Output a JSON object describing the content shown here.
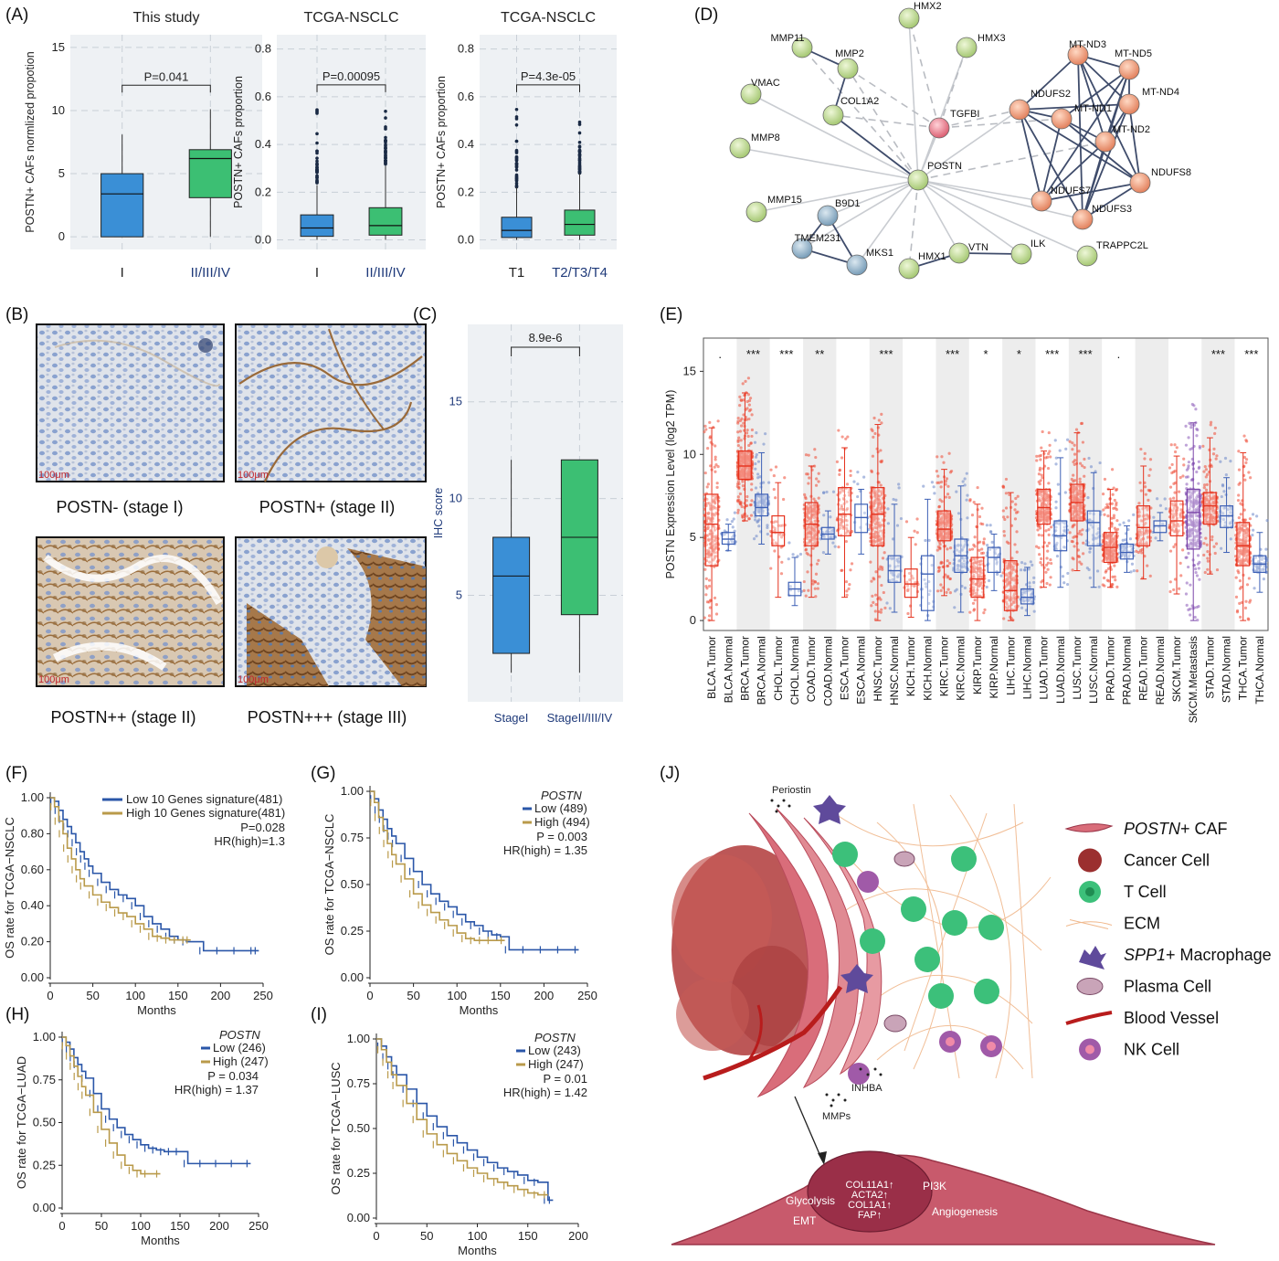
{
  "panels": {
    "A": "(A)",
    "B": "(B)",
    "C": "(C)",
    "D": "(D)",
    "E": "(E)",
    "F": "(F)",
    "G": "(G)",
    "H": "(H)",
    "I": "(I)",
    "J": "(J)"
  },
  "panel_a": {
    "plots": [
      {
        "title": "This study",
        "ylabel": "POSTN+ CAFs normlized propotion",
        "yticks": [
          "0",
          "5",
          "10",
          "15"
        ],
        "ylim": [
          -1,
          16
        ],
        "categories": [
          "I",
          "II/III/IV"
        ],
        "pvalue": "P=0.041",
        "boxes": [
          {
            "q1": 0,
            "median": 3.4,
            "q3": 5,
            "wlo": 0,
            "whi": 8.1,
            "color": "#3a8fd6"
          },
          {
            "q1": 3.1,
            "median": 6.2,
            "q3": 6.9,
            "wlo": 0,
            "whi": 10.1,
            "color": "#3cbf73"
          }
        ]
      },
      {
        "title": "TCGA-NSCLC",
        "ylabel": "POSTN+ CAFs proportion",
        "yticks": [
          "0.0",
          "0.2",
          "0.4",
          "0.6",
          "0.8"
        ],
        "ylim": [
          -0.04,
          0.86
        ],
        "categories": [
          "I",
          "II/III/IV"
        ],
        "pvalue": "P=0.00095",
        "boxes": [
          {
            "q1": 0.015,
            "median": 0.05,
            "q3": 0.105,
            "wlo": 0,
            "whi": 0.23,
            "color": "#3a8fd6"
          },
          {
            "q1": 0.02,
            "median": 0.06,
            "q3": 0.135,
            "wlo": 0,
            "whi": 0.31,
            "color": "#3cbf73"
          }
        ]
      },
      {
        "title": "TCGA-NSCLC",
        "ylabel": "POSTN+ CAFs proportion",
        "yticks": [
          "0.0",
          "0.2",
          "0.4",
          "0.6",
          "0.8"
        ],
        "ylim": [
          -0.04,
          0.86
        ],
        "categories": [
          "T1",
          "T2/T3/T4"
        ],
        "pvalue": "P=4.3e-05",
        "boxes": [
          {
            "q1": 0.01,
            "median": 0.04,
            "q3": 0.095,
            "wlo": 0,
            "whi": 0.22,
            "color": "#3a8fd6"
          },
          {
            "q1": 0.02,
            "median": 0.065,
            "q3": 0.125,
            "wlo": 0,
            "whi": 0.28,
            "color": "#3cbf73"
          }
        ]
      }
    ]
  },
  "panel_b": {
    "captions": [
      "POSTN- (stage I)",
      "POSTN+ (stage II)",
      "POSTN++ (stage II)",
      "POSTN+++ (stage III)"
    ],
    "scale": [
      "100μm",
      "100μm",
      "100μm",
      "100μm"
    ]
  },
  "panel_c": {
    "ylabel": "IHC score",
    "yticks": [
      "5",
      "10",
      "15"
    ],
    "categories": [
      "StageI",
      "StageII/III/IV"
    ],
    "pvalue": "8.9e-6",
    "chart_data": {
      "type": "box",
      "categories": [
        "StageI",
        "StageII/III/IV"
      ],
      "boxes": [
        {
          "q1": 2,
          "median": 6,
          "q3": 8,
          "wlo": 1,
          "whi": 12,
          "color": "#3a8fd6"
        },
        {
          "q1": 4,
          "median": 8,
          "q3": 12,
          "wlo": 1,
          "whi": 12,
          "color": "#3cbf73"
        }
      ],
      "ylim": [
        -0.5,
        19
      ]
    }
  },
  "panel_d": {
    "nodes": [
      {
        "label": "HMX2",
        "c": "g"
      },
      {
        "label": "HMX3",
        "c": "g"
      },
      {
        "label": "MMP11",
        "c": "g"
      },
      {
        "label": "MMP2",
        "c": "g"
      },
      {
        "label": "VMAC",
        "c": "g"
      },
      {
        "label": "COL1A2",
        "c": "g"
      },
      {
        "label": "TGFBI",
        "c": "r"
      },
      {
        "label": "MMP8",
        "c": "g"
      },
      {
        "label": "POSTN",
        "c": "g"
      },
      {
        "label": "MMP15",
        "c": "g"
      },
      {
        "label": "B9D1",
        "c": "b"
      },
      {
        "label": "TMEM231",
        "c": "b"
      },
      {
        "label": "MKS1",
        "c": "b"
      },
      {
        "label": "HMX1",
        "c": "g"
      },
      {
        "label": "VTN",
        "c": "g"
      },
      {
        "label": "ILK",
        "c": "g"
      },
      {
        "label": "TRAPPC2L",
        "c": "g"
      },
      {
        "label": "MT-ND3",
        "c": "o"
      },
      {
        "label": "MT-ND5",
        "c": "o"
      },
      {
        "label": "NDUFS2",
        "c": "o"
      },
      {
        "label": "MT-ND1",
        "c": "o"
      },
      {
        "label": "MT-ND4",
        "c": "o"
      },
      {
        "label": "MT-ND2",
        "c": "o"
      },
      {
        "label": "NDUFS8",
        "c": "o"
      },
      {
        "label": "NDUFS7",
        "c": "o"
      },
      {
        "label": "NDUFS3",
        "c": "o"
      }
    ]
  },
  "panel_e": {
    "ylabel": "POSTN Expression Level (log2 TPM)",
    "yticks": [
      "0",
      "5",
      "10",
      "15"
    ],
    "chart_data": {
      "type": "box",
      "ylim": [
        -0.6,
        17
      ],
      "categories": [
        "BLCA.Tumor",
        "BLCA.Normal",
        "BRCA.Tumor",
        "BRCA.Normal",
        "CHOL.Tumor",
        "CHOL.Normal",
        "COAD.Tumor",
        "COAD.Normal",
        "ESCA.Tumor",
        "ESCA.Normal",
        "HNSC.Tumor",
        "HNSC.Normal",
        "KICH.Tumor",
        "KICH.Normal",
        "KIRC.Tumor",
        "KIRC.Normal",
        "KIRP.Tumor",
        "KIRP.Normal",
        "LIHC.Tumor",
        "LIHC.Normal",
        "LUAD.Tumor",
        "LUAD.Normal",
        "LUSC.Tumor",
        "LUSC.Normal",
        "PRAD.Tumor",
        "PRAD.Normal",
        "READ.Tumor",
        "READ.Normal",
        "SKCM.Tumor",
        "SKCM.Metastasis",
        "STAD.Tumor",
        "STAD.Normal",
        "THCA.Tumor",
        "THCA.Normal"
      ],
      "q1": [
        3.3,
        4.6,
        8.5,
        6.3,
        4.5,
        1.5,
        4.5,
        4.9,
        5.1,
        5.3,
        4.5,
        2.3,
        1.4,
        0.6,
        4.8,
        2.9,
        1.4,
        2.9,
        0.6,
        1.0,
        5.8,
        4.2,
        6.0,
        4.5,
        3.5,
        3.7,
        4.5,
        5.3,
        5.1,
        4.3,
        5.8,
        5.6,
        3.3,
        2.9
      ],
      "median": [
        5.8,
        4.9,
        9.3,
        6.8,
        5.3,
        1.9,
        5.8,
        5.2,
        6.4,
        6.2,
        6.4,
        3.0,
        2.2,
        2.8,
        5.5,
        3.9,
        2.5,
        3.8,
        1.8,
        1.4,
        6.8,
        5.1,
        7.1,
        5.9,
        4.4,
        4.1,
        5.6,
        5.7,
        6.0,
        6.5,
        6.9,
        6.3,
        4.5,
        3.4
      ],
      "q3": [
        7.6,
        5.3,
        10.2,
        7.6,
        6.3,
        2.3,
        7.1,
        5.6,
        8.0,
        7.0,
        8.0,
        3.9,
        3.1,
        3.9,
        6.6,
        4.9,
        3.8,
        4.4,
        3.6,
        1.9,
        7.9,
        6.0,
        8.2,
        6.6,
        5.3,
        4.6,
        6.9,
        6.0,
        7.2,
        7.9,
        7.7,
        6.9,
        5.9,
        3.9
      ],
      "wlo": [
        0,
        4.2,
        6.0,
        4.6,
        1.4,
        0.9,
        1.4,
        4.0,
        1.4,
        4.0,
        0,
        0.5,
        0.2,
        0,
        1.5,
        0.5,
        0,
        1.8,
        0,
        0.3,
        2.0,
        2.0,
        3.0,
        2.0,
        2.0,
        2.9,
        2.5,
        4.8,
        1.6,
        0,
        2.8,
        4.1,
        0,
        1.7
      ],
      "whi": [
        11.6,
        5.8,
        13.7,
        10.1,
        8.3,
        3.8,
        9.3,
        6.6,
        10.4,
        7.9,
        11.8,
        7.0,
        5.0,
        7.3,
        9.1,
        8.1,
        7.0,
        5.2,
        7.7,
        3.2,
        10.2,
        9.8,
        11.3,
        8.9,
        7.9,
        5.7,
        9.3,
        6.5,
        9.9,
        11.9,
        11.0,
        8.6,
        10.1,
        5.3
      ],
      "dotcount": [
        220,
        25,
        380,
        110,
        40,
        10,
        220,
        35,
        90,
        12,
        250,
        40,
        25,
        25,
        260,
        70,
        150,
        30,
        180,
        50,
        250,
        55,
        250,
        50,
        250,
        55,
        100,
        10,
        100,
        300,
        200,
        35,
        250,
        60
      ],
      "sig": [
        ".",
        "",
        "***",
        "",
        "***",
        "",
        "**",
        "",
        "",
        "",
        "***",
        "",
        "",
        "",
        "***",
        "",
        "*",
        "",
        "*",
        "",
        "***",
        "",
        "***",
        "",
        ".",
        "",
        "",
        "",
        "",
        "",
        "***",
        "",
        "***",
        ""
      ]
    }
  },
  "panel_f": {
    "ylabel": "OS rate for TCGA−NSCLC",
    "xlabel": "Months",
    "yticks": [
      "0.00",
      "0.20",
      "0.40",
      "0.60",
      "0.80",
      "1.00"
    ],
    "xticks": [
      "0",
      "50",
      "100",
      "150",
      "200",
      "250"
    ],
    "legend": [
      "Low 10 Genes signature(481)",
      "High 10 Genes signature(481)"
    ],
    "p": "P=0.028",
    "hr": "HR(high)=1.3",
    "chart_data": {
      "type": "line",
      "series": [
        {
          "name": "Low 10 Genes signature(481)",
          "color": "#2a56a8",
          "x": [
            0,
            5,
            10,
            15,
            20,
            25,
            30,
            35,
            40,
            45,
            50,
            60,
            70,
            80,
            90,
            100,
            110,
            120,
            130,
            140,
            150,
            160,
            180,
            200,
            220,
            240,
            245
          ],
          "y": [
            1,
            0.98,
            0.93,
            0.88,
            0.84,
            0.8,
            0.75,
            0.7,
            0.66,
            0.62,
            0.58,
            0.53,
            0.49,
            0.46,
            0.44,
            0.4,
            0.34,
            0.3,
            0.27,
            0.23,
            0.21,
            0.2,
            0.15,
            0.15,
            0.15,
            0.15,
            0.15
          ]
        },
        {
          "name": "High 10 Genes signature(481)",
          "color": "#b99a4a",
          "x": [
            0,
            5,
            10,
            15,
            20,
            25,
            30,
            35,
            40,
            50,
            60,
            70,
            80,
            90,
            100,
            110,
            120,
            130,
            140,
            150,
            160,
            165
          ],
          "y": [
            1,
            0.95,
            0.87,
            0.8,
            0.72,
            0.66,
            0.6,
            0.55,
            0.51,
            0.46,
            0.42,
            0.39,
            0.36,
            0.34,
            0.3,
            0.27,
            0.23,
            0.22,
            0.21,
            0.21,
            0.21,
            0.21
          ]
        }
      ],
      "xlim": [
        0,
        250
      ],
      "ylim": [
        0,
        1
      ]
    }
  },
  "panel_g": {
    "ylabel": "OS rate for TCGA−NSCLC",
    "xlabel": "Months",
    "yticks": [
      "0.00",
      "0.25",
      "0.50",
      "0.75",
      "1.00"
    ],
    "xticks": [
      "0",
      "50",
      "100",
      "150",
      "200",
      "250"
    ],
    "legend_title": "POSTN",
    "legend": [
      "Low (489)",
      "High (494)"
    ],
    "p": "P = 0.003",
    "hr": "HR(high) = 1.35",
    "chart_data": {
      "type": "line",
      "series": [
        {
          "name": "Low (489)",
          "color": "#2a56a8",
          "x": [
            0,
            5,
            10,
            15,
            20,
            25,
            30,
            40,
            50,
            60,
            70,
            80,
            90,
            100,
            110,
            120,
            130,
            140,
            150,
            160,
            180,
            200,
            220,
            240
          ],
          "y": [
            1,
            0.96,
            0.9,
            0.85,
            0.8,
            0.76,
            0.72,
            0.64,
            0.57,
            0.5,
            0.45,
            0.41,
            0.38,
            0.34,
            0.3,
            0.28,
            0.25,
            0.23,
            0.22,
            0.15,
            0.15,
            0.15,
            0.15,
            0.15
          ]
        },
        {
          "name": "High (494)",
          "color": "#b99a4a",
          "x": [
            0,
            5,
            10,
            15,
            20,
            25,
            30,
            40,
            50,
            60,
            70,
            80,
            90,
            100,
            110,
            120,
            130,
            140,
            155
          ],
          "y": [
            1,
            0.94,
            0.86,
            0.79,
            0.72,
            0.66,
            0.61,
            0.53,
            0.45,
            0.39,
            0.35,
            0.31,
            0.28,
            0.24,
            0.21,
            0.2,
            0.2,
            0.2,
            0.2
          ]
        }
      ],
      "xlim": [
        0,
        250
      ],
      "ylim": [
        0,
        1
      ]
    }
  },
  "panel_h": {
    "ylabel": "OS rate for TCGA−LUAD",
    "xlabel": "Months",
    "yticks": [
      "0.00",
      "0.25",
      "0.50",
      "0.75",
      "1.00"
    ],
    "xticks": [
      "0",
      "50",
      "100",
      "150",
      "200",
      "250"
    ],
    "legend_title": "POSTN",
    "legend": [
      "Low (246)",
      "High (247)"
    ],
    "p": "P = 0.034",
    "hr": "HR(high) = 1.37",
    "chart_data": {
      "type": "line",
      "series": [
        {
          "name": "Low (246)",
          "color": "#2a56a8",
          "x": [
            0,
            5,
            10,
            15,
            20,
            25,
            30,
            40,
            50,
            60,
            70,
            80,
            90,
            100,
            110,
            120,
            130,
            140,
            150,
            160,
            180,
            200,
            220,
            240
          ],
          "y": [
            1,
            0.97,
            0.93,
            0.88,
            0.84,
            0.8,
            0.76,
            0.67,
            0.58,
            0.52,
            0.47,
            0.43,
            0.4,
            0.37,
            0.35,
            0.34,
            0.33,
            0.33,
            0.33,
            0.26,
            0.26,
            0.26,
            0.26,
            0.26
          ]
        },
        {
          "name": "High (247)",
          "color": "#b99a4a",
          "x": [
            0,
            5,
            10,
            15,
            20,
            25,
            30,
            40,
            50,
            60,
            70,
            80,
            90,
            100,
            110,
            125
          ],
          "y": [
            1,
            0.95,
            0.89,
            0.83,
            0.77,
            0.71,
            0.66,
            0.56,
            0.46,
            0.38,
            0.31,
            0.25,
            0.22,
            0.2,
            0.2,
            0.2
          ]
        }
      ],
      "xlim": [
        0,
        250
      ],
      "ylim": [
        0,
        1
      ]
    }
  },
  "panel_i": {
    "ylabel": "OS rate for TCGA−LUSC",
    "xlabel": "Months",
    "yticks": [
      "0.00",
      "0.25",
      "0.50",
      "0.75",
      "1.00"
    ],
    "xticks": [
      "0",
      "50",
      "100",
      "150",
      "200"
    ],
    "legend_title": "POSTN",
    "legend": [
      "Low (243)",
      "High (247)"
    ],
    "p": "P = 0.01",
    "hr": "HR(high) = 1.42",
    "chart_data": {
      "type": "line",
      "series": [
        {
          "name": "Low (243)",
          "color": "#2a56a8",
          "x": [
            0,
            5,
            10,
            15,
            20,
            30,
            40,
            50,
            60,
            70,
            80,
            90,
            100,
            110,
            120,
            130,
            140,
            150,
            160,
            170,
            175
          ],
          "y": [
            1,
            0.96,
            0.9,
            0.85,
            0.8,
            0.72,
            0.64,
            0.57,
            0.51,
            0.46,
            0.42,
            0.38,
            0.34,
            0.31,
            0.28,
            0.26,
            0.24,
            0.21,
            0.2,
            0.1,
            0.1
          ]
        },
        {
          "name": "High (247)",
          "color": "#b99a4a",
          "x": [
            0,
            5,
            10,
            15,
            20,
            30,
            40,
            50,
            60,
            70,
            80,
            90,
            100,
            110,
            120,
            130,
            140,
            150,
            160,
            170
          ],
          "y": [
            1,
            0.94,
            0.87,
            0.8,
            0.74,
            0.64,
            0.55,
            0.47,
            0.41,
            0.36,
            0.32,
            0.28,
            0.25,
            0.22,
            0.2,
            0.18,
            0.16,
            0.14,
            0.13,
            0.13
          ]
        }
      ],
      "xlim": [
        0,
        200
      ],
      "ylim": [
        0,
        1
      ]
    }
  },
  "panel_j": {
    "labels": {
      "periostin": "Periostin",
      "inhba": "INHBA",
      "mmps": "MMPs"
    },
    "legend": [
      {
        "italic": "POSTN",
        "text": "+ CAF"
      },
      {
        "italic": "",
        "text": "Cancer Cell"
      },
      {
        "italic": "",
        "text": "T Cell"
      },
      {
        "italic": "",
        "text": "ECM"
      },
      {
        "italic": "SPP1",
        "text": "+ Macrophage"
      },
      {
        "italic": "",
        "text": "Plasma Cell"
      },
      {
        "italic": "",
        "text": "Blood Vessel"
      },
      {
        "italic": "",
        "text": "NK Cell"
      }
    ],
    "caf_text": {
      "glycolysis": "Glycolysis",
      "emt": "EMT",
      "pi3k": "PI3K",
      "angiogenesis": "Angiogenesis",
      "genes": [
        "COL11A1↑",
        "ACTA2↑",
        "COL1A1↑",
        "FAP↑"
      ]
    }
  }
}
